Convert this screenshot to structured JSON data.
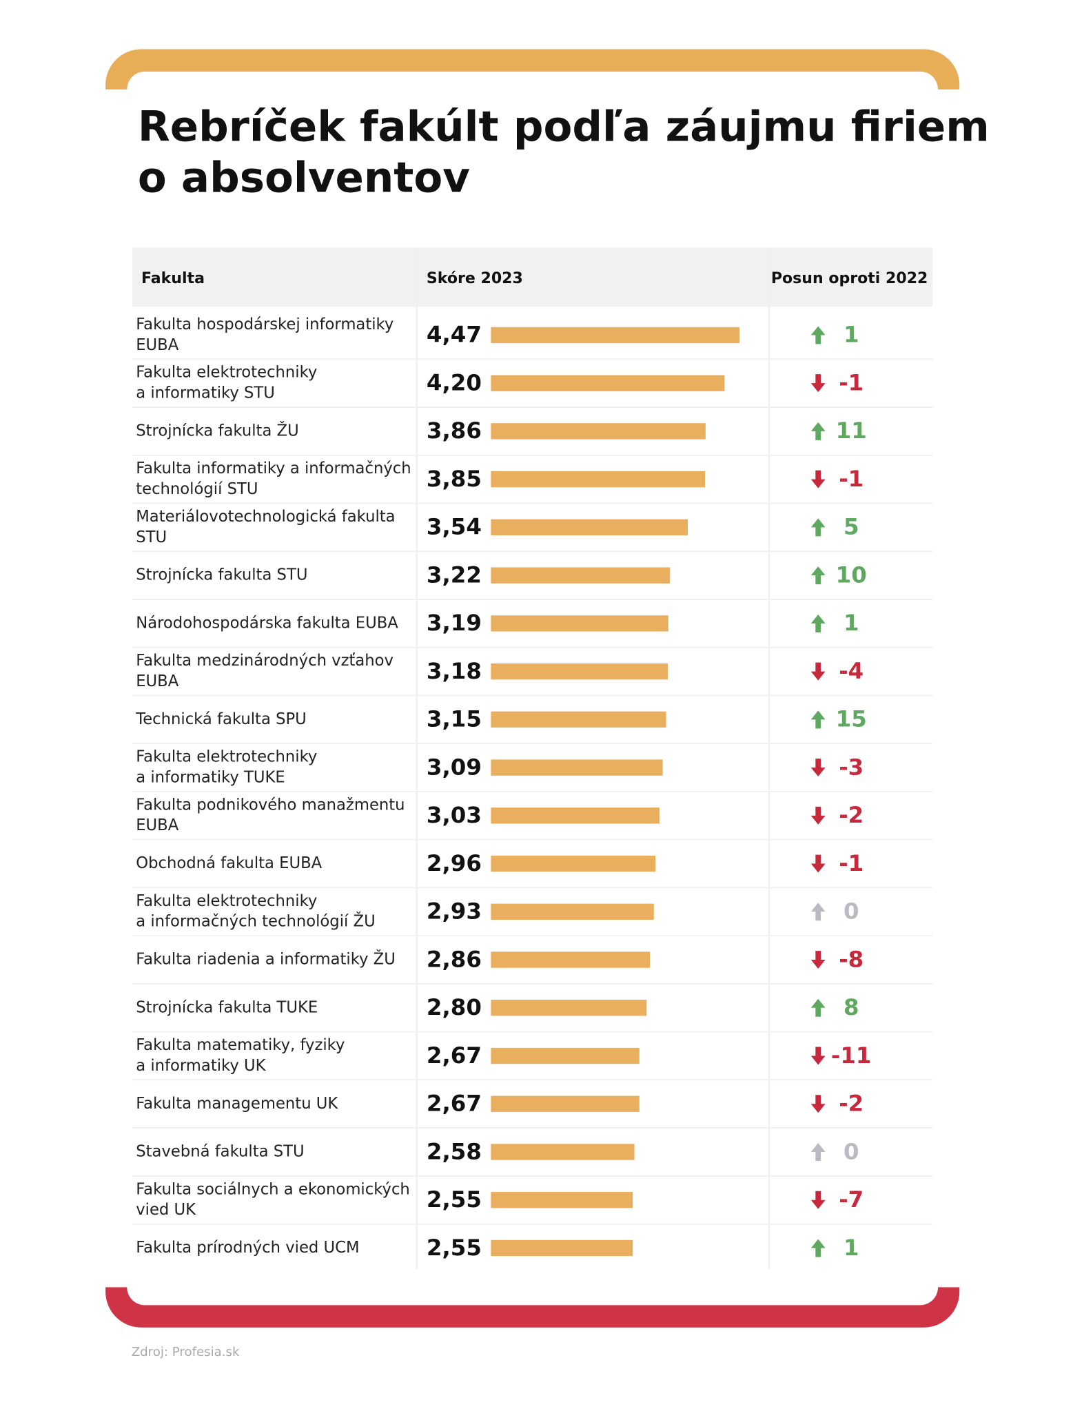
{
  "header": {
    "title": [
      "Rebríček fakúlt podľa záujmu firiem",
      "o absolventov"
    ]
  },
  "table": {
    "columns": [
      "Fakulta",
      "Skóre 2023",
      "Posun oproti 2022"
    ],
    "rows": [
      {
        "name": [
          "Fakulta hospodárskej informatiky",
          "EUBA"
        ],
        "score": 4.47,
        "score_label": "4,47",
        "change": 1
      },
      {
        "name": [
          "Fakulta elektrotechniky",
          "a informatiky STU"
        ],
        "score": 4.2,
        "score_label": "4,20",
        "change": -1
      },
      {
        "name": [
          "Strojnícka fakulta ŽU"
        ],
        "score": 3.86,
        "score_label": "3,86",
        "change": 11
      },
      {
        "name": [
          "Fakulta informatiky a informačných",
          "technológií STU"
        ],
        "score": 3.85,
        "score_label": "3,85",
        "change": -1
      },
      {
        "name": [
          "Materiálovotechnologická fakulta",
          "STU"
        ],
        "score": 3.54,
        "score_label": "3,54",
        "change": 5
      },
      {
        "name": [
          "Strojnícka fakulta STU"
        ],
        "score": 3.22,
        "score_label": "3,22",
        "change": 10
      },
      {
        "name": [
          "Národohospodárska fakulta EUBA"
        ],
        "score": 3.19,
        "score_label": "3,19",
        "change": 1
      },
      {
        "name": [
          "Fakulta medzinárodných vzťahov",
          "EUBA"
        ],
        "score": 3.18,
        "score_label": "3,18",
        "change": -4
      },
      {
        "name": [
          "Technická fakulta SPU"
        ],
        "score": 3.15,
        "score_label": "3,15",
        "change": 15
      },
      {
        "name": [
          "Fakulta elektrotechniky",
          "a informatiky TUKE"
        ],
        "score": 3.09,
        "score_label": "3,09",
        "change": -3
      },
      {
        "name": [
          "Fakulta podnikového manažmentu",
          "EUBA"
        ],
        "score": 3.03,
        "score_label": "3,03",
        "change": -2
      },
      {
        "name": [
          "Obchodná fakulta EUBA"
        ],
        "score": 2.96,
        "score_label": "2,96",
        "change": -1
      },
      {
        "name": [
          "Fakulta elektrotechniky",
          "a informačných technológií ŽU"
        ],
        "score": 2.93,
        "score_label": "2,93",
        "change": 0
      },
      {
        "name": [
          "Fakulta riadenia a informatiky ŽU"
        ],
        "score": 2.86,
        "score_label": "2,86",
        "change": -8
      },
      {
        "name": [
          "Strojnícka fakulta TUKE"
        ],
        "score": 2.8,
        "score_label": "2,80",
        "change": 8
      },
      {
        "name": [
          "Fakulta matematiky, fyziky",
          "a informatiky UK"
        ],
        "score": 2.67,
        "score_label": "2,67",
        "change": -11
      },
      {
        "name": [
          "Fakulta managementu UK"
        ],
        "score": 2.67,
        "score_label": "2,67",
        "change": -2
      },
      {
        "name": [
          "Stavebná fakulta STU"
        ],
        "score": 2.58,
        "score_label": "2,58",
        "change": 0
      },
      {
        "name": [
          "Fakulta sociálnych a ekonomických",
          "vied UK"
        ],
        "score": 2.55,
        "score_label": "2,55",
        "change": -7
      },
      {
        "name": [
          "Fakulta prírodných vied UCM"
        ],
        "score": 2.55,
        "score_label": "2,55",
        "change": 1
      }
    ]
  },
  "footer": {
    "source": "Zdroj: Profesia.sk"
  }
}
